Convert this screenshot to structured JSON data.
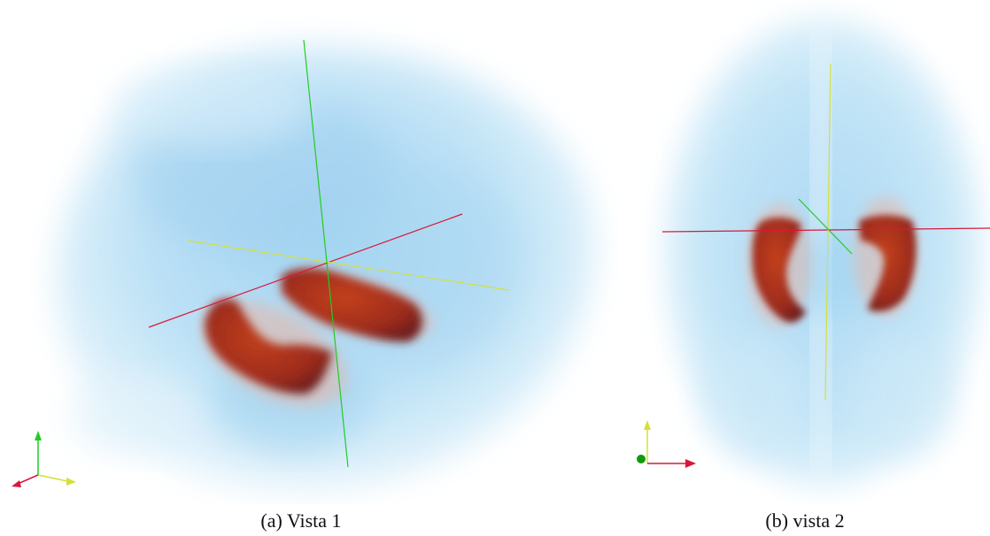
{
  "figure": {
    "panels": [
      {
        "caption": "(a) Vista 1"
      },
      {
        "caption": "(b) vista 2"
      }
    ]
  },
  "colors": {
    "brain_volume": "#bfe3f7",
    "structure": "#a8301c",
    "axis_red": "#d8183a",
    "axis_green": "#22cc22",
    "axis_yellow": "#d4e03a"
  }
}
